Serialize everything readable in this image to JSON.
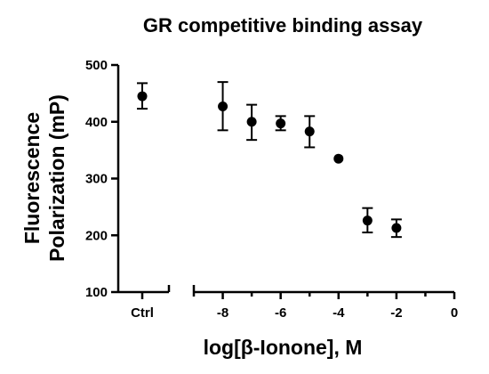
{
  "chart_data": {
    "type": "scatter",
    "title": "GR competitive binding assay",
    "xlabel": "log[β-Ionone], M",
    "ylabel_lines": [
      "Fluorescence",
      "Polarization (mP)"
    ],
    "ylim": [
      100,
      500
    ],
    "yticks": [
      100,
      200,
      300,
      400,
      500
    ],
    "xlim": [
      -9,
      0
    ],
    "xticks": [
      -8,
      -6,
      -4,
      -2,
      0
    ],
    "xtick_labels": [
      "-8",
      "-6",
      "-4",
      "-2",
      "0"
    ],
    "control": {
      "label": "Ctrl",
      "y": 445,
      "err_low": 423,
      "err_high": 468
    },
    "points": [
      {
        "x": -8,
        "y": 427,
        "err_low": 385,
        "err_high": 470
      },
      {
        "x": -7,
        "y": 400,
        "err_low": 368,
        "err_high": 430
      },
      {
        "x": -6,
        "y": 397,
        "err_low": 385,
        "err_high": 410
      },
      {
        "x": -5,
        "y": 383,
        "err_low": 355,
        "err_high": 410
      },
      {
        "x": -4,
        "y": 335
      },
      {
        "x": -3,
        "y": 226,
        "err_low": 205,
        "err_high": 248
      },
      {
        "x": -2,
        "y": 213,
        "err_low": 197,
        "err_high": 228
      }
    ],
    "grid": false,
    "legend": "none"
  }
}
